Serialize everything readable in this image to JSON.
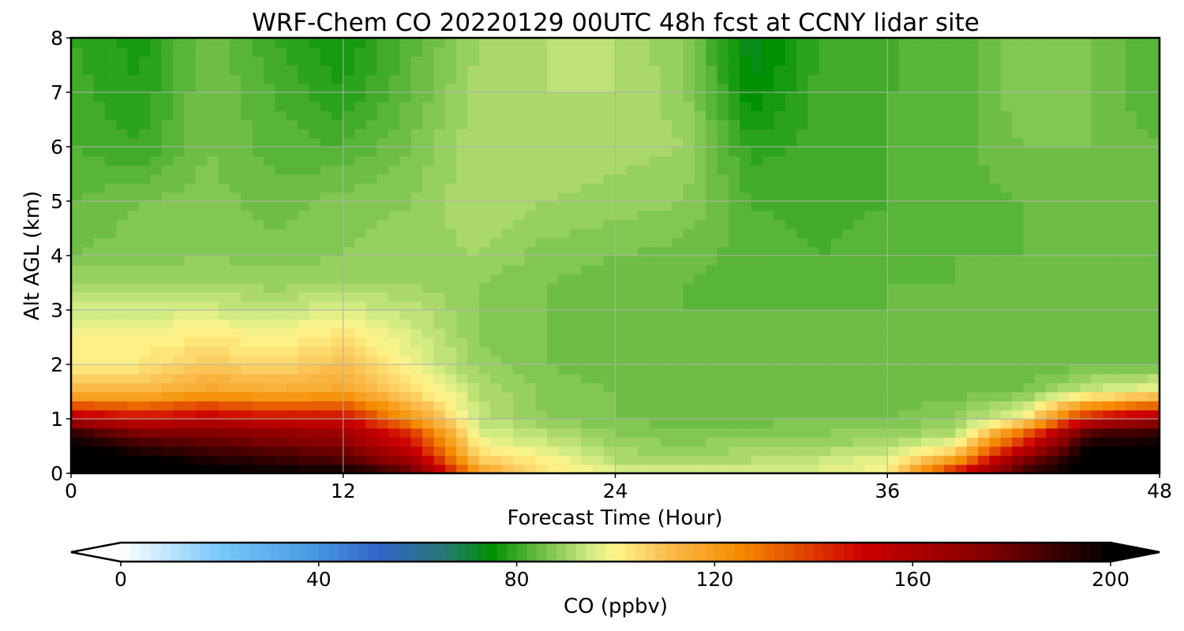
{
  "chart_data": {
    "type": "heatmap",
    "title": "WRF-Chem CO  20220129 00UTC 48h fcst at CCNY lidar site",
    "xlabel": "Forecast Time (Hour)",
    "ylabel": "Alt AGL (km)",
    "xlim": [
      0,
      48
    ],
    "ylim": [
      0,
      8
    ],
    "xticks": [
      "0",
      "12",
      "24",
      "36",
      "48"
    ],
    "yticks": [
      "0",
      "1",
      "2",
      "3",
      "4",
      "5",
      "6",
      "7",
      "8"
    ],
    "grid": true,
    "colorbar": {
      "label": "CO  (ppbv)",
      "range": [
        0,
        200
      ],
      "ticks": [
        "0",
        "40",
        "80",
        "120",
        "160",
        "200"
      ],
      "extend": "both",
      "levels": 100
    },
    "x": [
      0,
      3,
      6,
      9,
      12,
      15,
      18,
      21,
      24,
      27,
      30,
      33,
      36,
      39,
      42,
      45,
      48
    ],
    "y": [
      0,
      0.25,
      0.5,
      0.75,
      1,
      1.5,
      2,
      2.5,
      3,
      3.5,
      4,
      5,
      6,
      7,
      8
    ],
    "z": [
      [
        205,
        205,
        202,
        200,
        200,
        185,
        120,
        102,
        98,
        97,
        96,
        97,
        100,
        150,
        190,
        205,
        205
      ],
      [
        205,
        203,
        195,
        190,
        185,
        165,
        108,
        100,
        92,
        90,
        92,
        94,
        98,
        120,
        175,
        205,
        205
      ],
      [
        203,
        190,
        185,
        180,
        175,
        150,
        100,
        95,
        90,
        88,
        90,
        90,
        92,
        100,
        150,
        200,
        200
      ],
      [
        190,
        175,
        175,
        170,
        165,
        140,
        96,
        92,
        88,
        86,
        87,
        88,
        88,
        92,
        130,
        185,
        190
      ],
      [
        160,
        150,
        155,
        150,
        150,
        122,
        93,
        88,
        86,
        85,
        85,
        86,
        86,
        88,
        100,
        150,
        165
      ],
      [
        112,
        112,
        118,
        115,
        118,
        105,
        92,
        87,
        86,
        85,
        84,
        85,
        85,
        85,
        86,
        95,
        100
      ],
      [
        100,
        102,
        108,
        105,
        110,
        98,
        89,
        86,
        85,
        84,
        84,
        84,
        84,
        84,
        84,
        85,
        85
      ],
      [
        100,
        100,
        102,
        100,
        104,
        96,
        88,
        86,
        85,
        84,
        84,
        84,
        84,
        84,
        84,
        84,
        84
      ],
      [
        95,
        95,
        95,
        94,
        96,
        93,
        88,
        86,
        85,
        84,
        84,
        84,
        84,
        84,
        84,
        84,
        84
      ],
      [
        90,
        90,
        90,
        89,
        90,
        90,
        88,
        86,
        85,
        84,
        83,
        83,
        84,
        84,
        84,
        84,
        84
      ],
      [
        86,
        87,
        88,
        87,
        88,
        89,
        90,
        87,
        86,
        85,
        83,
        82,
        83,
        84,
        84,
        84,
        84
      ],
      [
        84,
        86,
        87,
        85,
        87,
        88,
        92,
        90,
        89,
        88,
        82,
        81,
        82,
        83,
        84,
        85,
        84
      ],
      [
        82,
        80,
        86,
        83,
        82,
        86,
        92,
        92,
        91,
        90,
        79,
        81,
        82,
        83,
        86,
        86,
        84
      ],
      [
        81,
        78,
        86,
        82,
        78,
        84,
        91,
        92,
        92,
        89,
        74,
        81,
        82,
        82,
        88,
        86,
        82
      ],
      [
        80,
        77,
        86,
        80,
        76,
        83,
        90,
        92,
        92,
        88,
        72,
        80,
        82,
        82,
        88,
        86,
        82
      ]
    ]
  }
}
